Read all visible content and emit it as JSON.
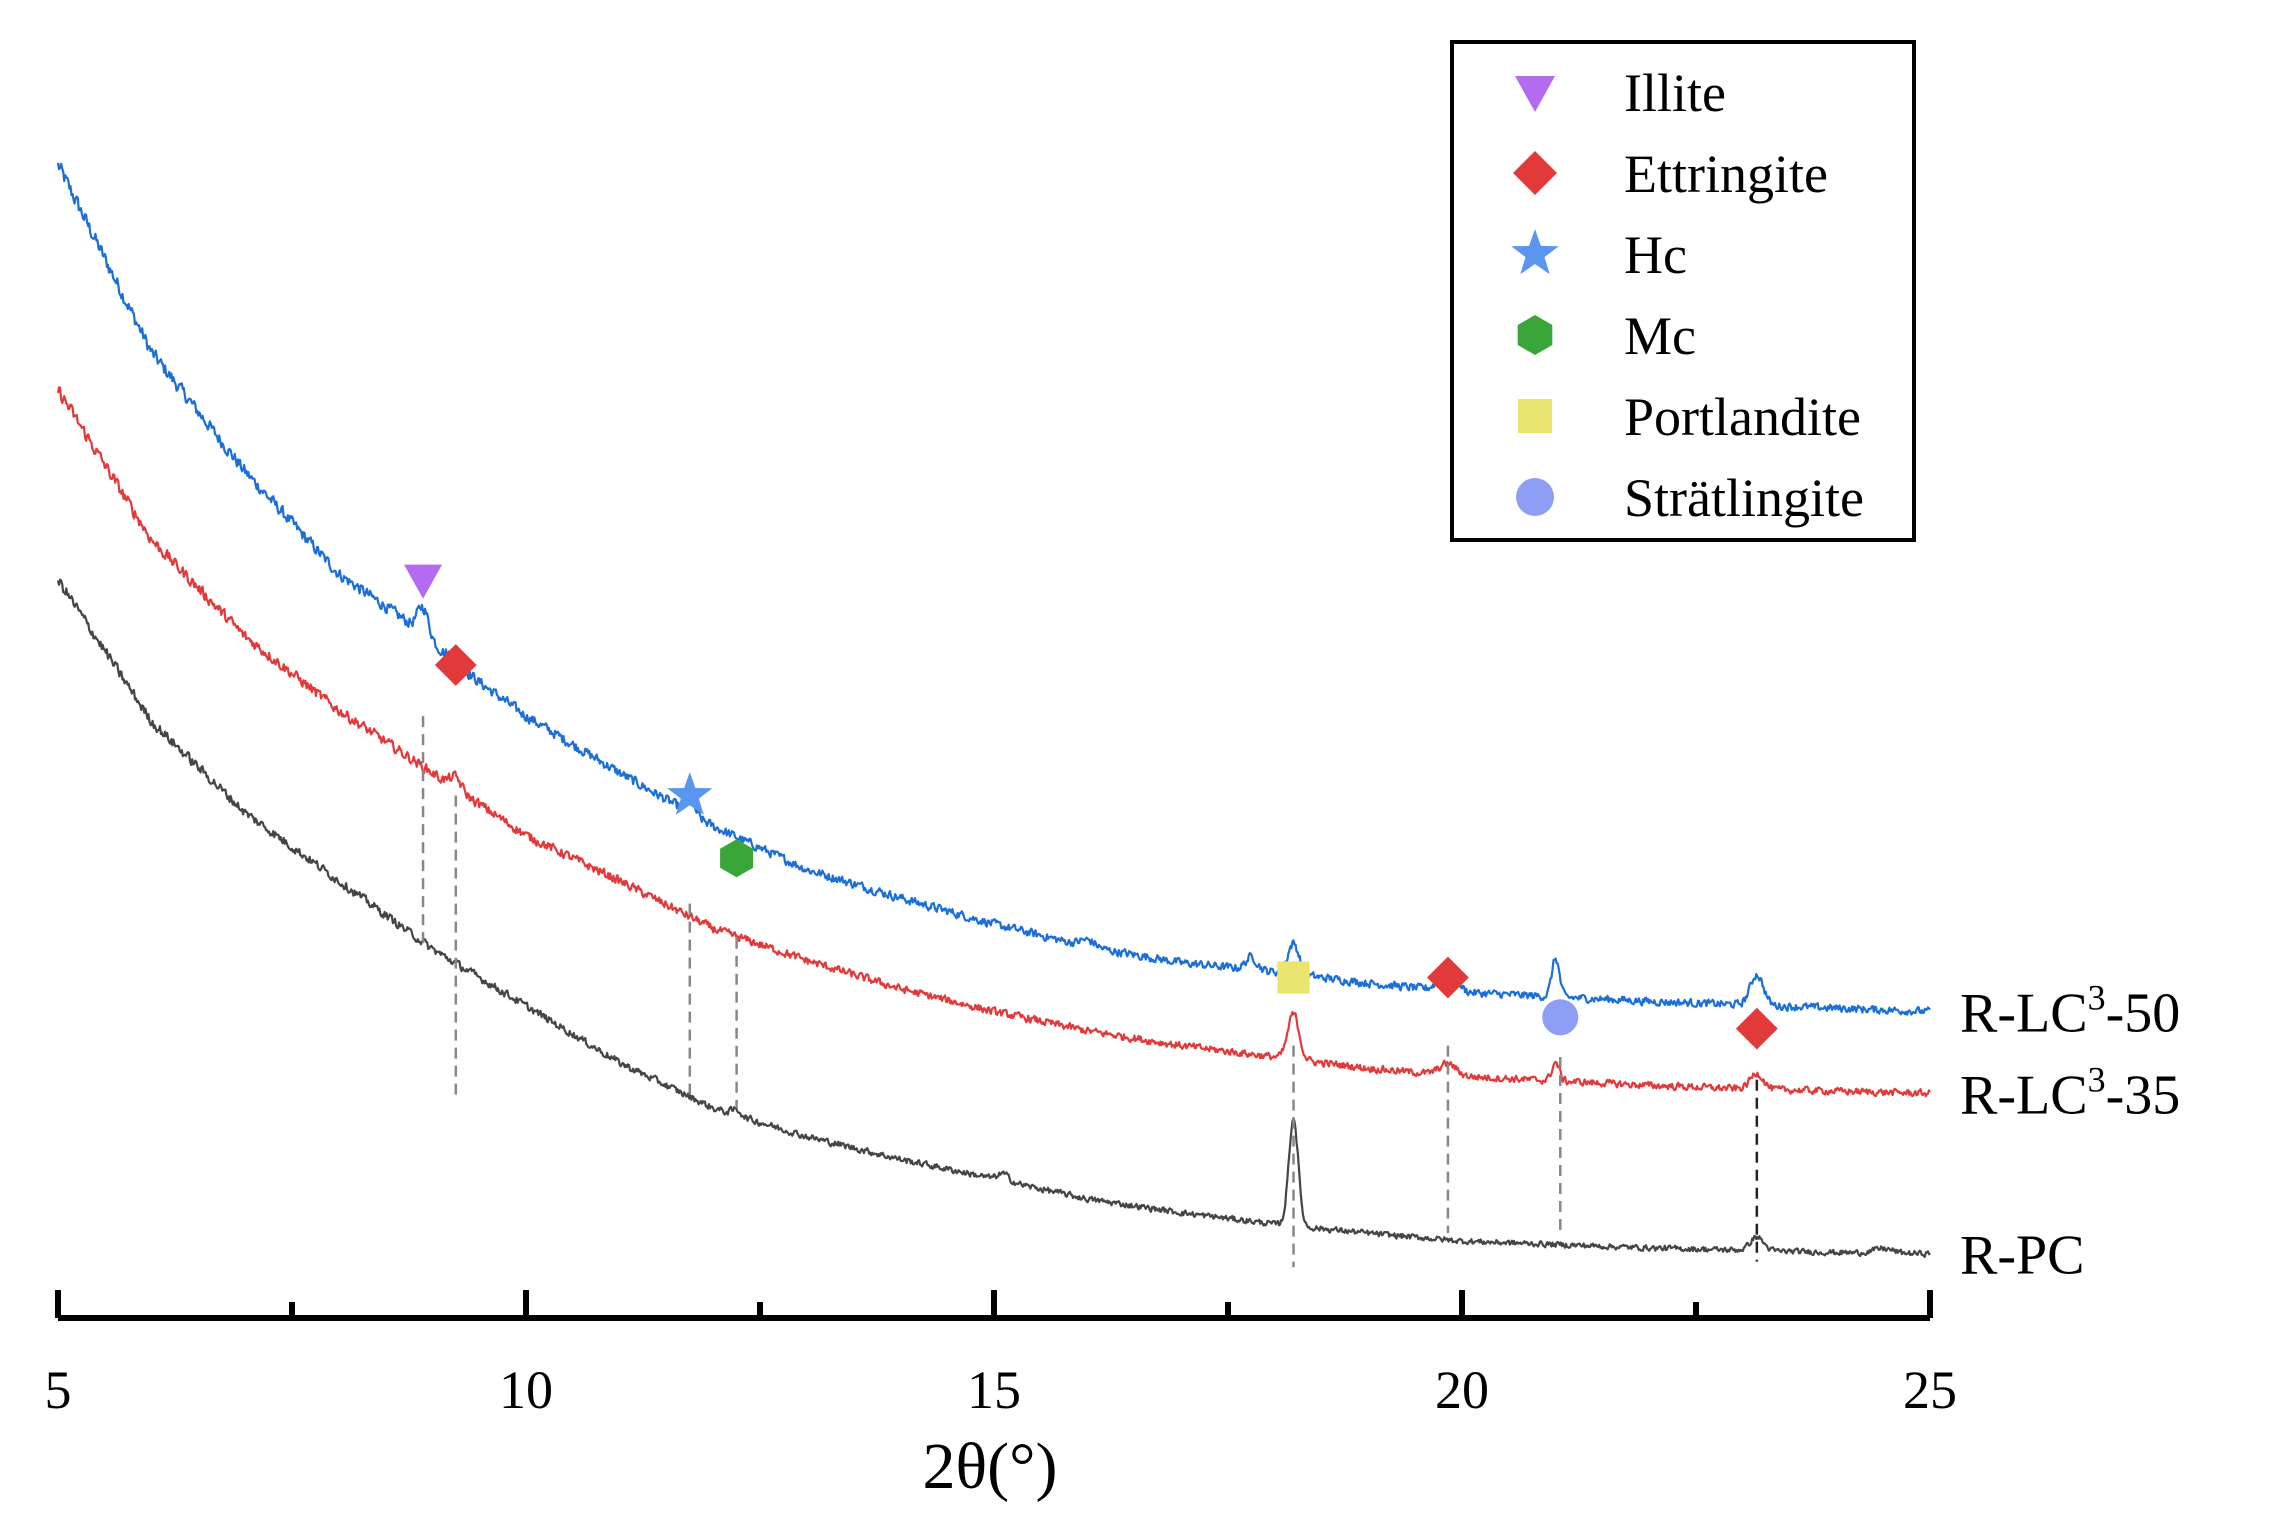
{
  "chart_data": {
    "type": "line",
    "xlabel": "2θ(°)",
    "ylabel": "",
    "xlim": [
      5,
      25
    ],
    "x_ticks": [
      "5",
      "10",
      "15",
      "20",
      "25"
    ],
    "y_axis_shown": false,
    "series": [
      {
        "name": "R-LC3-50",
        "label_main": "R-LC",
        "label_sup": "3",
        "label_tail": "-50",
        "color": "#1c6fd6",
        "baseline": [
          [
            5.0,
            1390
          ],
          [
            6.0,
            1225
          ],
          [
            7.0,
            1120
          ],
          [
            8.0,
            1030
          ],
          [
            8.7,
            990
          ],
          [
            9.5,
            935
          ],
          [
            10.0,
            905
          ],
          [
            11.0,
            855
          ],
          [
            12.0,
            808
          ],
          [
            13.0,
            770
          ],
          [
            14.0,
            745
          ],
          [
            15.0,
            722
          ],
          [
            16.0,
            702
          ],
          [
            17.0,
            688
          ],
          [
            18.0,
            680
          ],
          [
            19.0,
            670
          ],
          [
            20.0,
            662
          ],
          [
            21.0,
            658
          ],
          [
            22.0,
            654
          ],
          [
            23.0,
            651
          ],
          [
            24.0,
            648
          ],
          [
            25.0,
            645
          ]
        ],
        "peaks": [
          [
            8.9,
            25,
            0.06
          ],
          [
            9.25,
            8,
            0.05
          ],
          [
            11.75,
            12,
            0.05
          ],
          [
            16.0,
            6,
            0.08
          ],
          [
            17.75,
            11,
            0.06
          ],
          [
            18.2,
            27,
            0.06
          ],
          [
            19.85,
            18,
            0.09
          ],
          [
            21.0,
            34,
            0.04
          ],
          [
            23.15,
            27,
            0.07
          ]
        ]
      },
      {
        "name": "R-LC3-35",
        "label_main": "R-LC",
        "label_sup": "3",
        "label_tail": "-35",
        "color": "#e23a3a",
        "baseline": [
          [
            5.0,
            1192
          ],
          [
            6.0,
            1060
          ],
          [
            7.0,
            975
          ],
          [
            8.0,
            910
          ],
          [
            9.0,
            855
          ],
          [
            10.0,
            800
          ],
          [
            11.0,
            760
          ],
          [
            12.0,
            718
          ],
          [
            13.0,
            690
          ],
          [
            14.0,
            665
          ],
          [
            15.0,
            645
          ],
          [
            16.0,
            628
          ],
          [
            17.0,
            615
          ],
          [
            18.0,
            605
          ],
          [
            19.0,
            595
          ],
          [
            20.0,
            588
          ],
          [
            21.0,
            584
          ],
          [
            22.0,
            580
          ],
          [
            23.0,
            577
          ],
          [
            24.0,
            575
          ],
          [
            25.0,
            573
          ]
        ],
        "peaks": [
          [
            9.25,
            10,
            0.06
          ],
          [
            18.2,
            40,
            0.06
          ],
          [
            19.85,
            10,
            0.09
          ],
          [
            21.0,
            16,
            0.04
          ],
          [
            23.15,
            14,
            0.07
          ]
        ]
      },
      {
        "name": "R-PC",
        "label_main": "R-PC",
        "label_sup": "",
        "label_tail": "",
        "color": "#454545",
        "baseline": [
          [
            5.0,
            1025
          ],
          [
            6.0,
            900
          ],
          [
            7.0,
            820
          ],
          [
            8.0,
            760
          ],
          [
            9.0,
            700
          ],
          [
            10.0,
            650
          ],
          [
            11.0,
            600
          ],
          [
            12.0,
            560
          ],
          [
            13.0,
            535
          ],
          [
            14.0,
            515
          ],
          [
            15.0,
            498
          ],
          [
            16.0,
            480
          ],
          [
            17.0,
            468
          ],
          [
            18.0,
            458
          ],
          [
            19.0,
            450
          ],
          [
            20.0,
            443
          ],
          [
            21.0,
            440
          ],
          [
            22.0,
            437
          ],
          [
            23.0,
            435
          ],
          [
            24.0,
            433
          ],
          [
            25.0,
            432
          ]
        ],
        "peaks": [
          [
            12.25,
            5,
            0.05
          ],
          [
            15.1,
            6,
            0.06
          ],
          [
            18.2,
            95,
            0.05
          ],
          [
            23.15,
            12,
            0.07
          ],
          [
            24.5,
            4,
            0.1
          ]
        ]
      }
    ],
    "reference_lines": [
      {
        "x": 8.9,
        "y_top": 905,
        "y_bottom": 700,
        "color": "#888888",
        "marker": "illite",
        "marker_y": 1025
      },
      {
        "x": 9.25,
        "y_top": 835,
        "y_bottom": 570,
        "color": "#888888",
        "marker": "ettringite",
        "marker_y": 950
      },
      {
        "x": 11.75,
        "y_top": 740,
        "y_bottom": 570,
        "color": "#888888",
        "marker": "hc",
        "marker_y": 835
      },
      {
        "x": 12.25,
        "y_top": 710,
        "y_bottom": 560,
        "color": "#888888",
        "marker": "mc",
        "marker_y": 780
      },
      {
        "x": 18.2,
        "y_top": 615,
        "y_bottom": 420,
        "color": "#888888",
        "marker": "portlandite",
        "marker_y": 675
      },
      {
        "x": 19.85,
        "y_top": 615,
        "y_bottom": 450,
        "color": "#888888",
        "marker": "ettringite",
        "marker_y": 675
      },
      {
        "x": 21.05,
        "y_top": 605,
        "y_bottom": 450,
        "color": "#888888",
        "marker": "stratlingite",
        "marker_y": 640
      },
      {
        "x": 23.15,
        "y_top": 585,
        "y_bottom": 425,
        "color": "#222222",
        "marker": "ettringite",
        "marker_y": 630
      }
    ],
    "y_scale": {
      "min": 400,
      "max": 1500
    },
    "legend": {
      "position": "top-right",
      "entries": [
        {
          "label": "Illite",
          "marker": "illite",
          "color": "#b36bf0"
        },
        {
          "label": "Ettringite",
          "marker": "ettringite",
          "color": "#e23a3a"
        },
        {
          "label": "Hc",
          "marker": "hc",
          "color": "#5a95ef"
        },
        {
          "label": "Mc",
          "marker": "mc",
          "color": "#3aa63a"
        },
        {
          "label": "Portlandite",
          "marker": "portlandite",
          "color": "#ebe570"
        },
        {
          "label": "Strätlingite",
          "marker": "stratlingite",
          "color": "#8f9ef5"
        }
      ]
    }
  }
}
